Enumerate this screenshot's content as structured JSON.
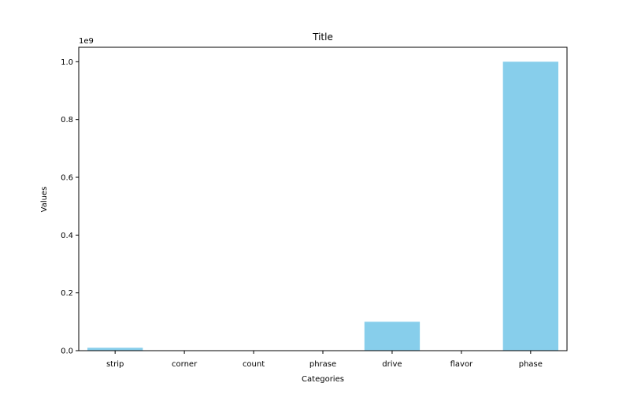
{
  "chart_data": {
    "type": "bar",
    "title": "Title",
    "xlabel": "Categories",
    "ylabel": "Values",
    "offset_label": "1e9",
    "categories": [
      "strip",
      "corner",
      "count",
      "phrase",
      "drive",
      "flavor",
      "phase"
    ],
    "values": [
      10000000,
      1000,
      1000,
      100,
      100000000,
      100,
      1000000000
    ],
    "ylim": [
      0,
      1050000000
    ],
    "yticks": [
      0,
      200000000,
      400000000,
      600000000,
      800000000,
      1000000000
    ],
    "ytick_labels": [
      "0.0",
      "0.2",
      "0.4",
      "0.6",
      "0.8",
      "1.0"
    ],
    "bar_color": "#87CEEB",
    "grid": false,
    "legend": "none"
  }
}
